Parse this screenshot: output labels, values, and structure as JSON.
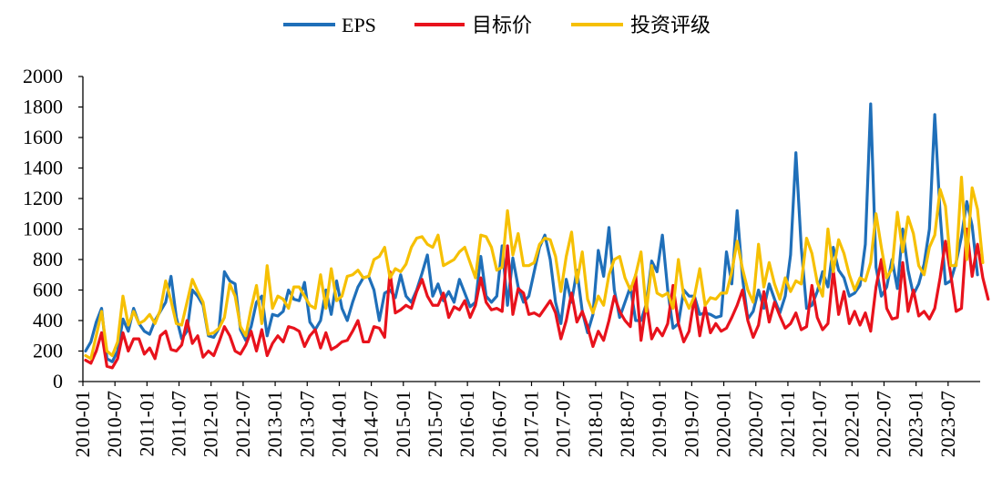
{
  "chart_data": {
    "type": "line",
    "title": "",
    "xlabel": "",
    "ylabel": "",
    "ylim": [
      0,
      2000
    ],
    "y_ticks": [
      "0",
      "200",
      "400",
      "600",
      "800",
      "1000",
      "1200",
      "1400",
      "1600",
      "1800",
      "2000"
    ],
    "x_tick_labels": [
      "2010-01",
      "2010-07",
      "2011-01",
      "2011-07",
      "2012-01",
      "2012-07",
      "2013-01",
      "2013-07",
      "2014-01",
      "2014-07",
      "2015-01",
      "2015-07",
      "2016-01",
      "2016-07",
      "2017-01",
      "2017-07",
      "2018-01",
      "2018-07",
      "2019-01",
      "2019-07",
      "2020-01",
      "2020-07",
      "2021-01",
      "2021-07",
      "2022-01",
      "2022-07",
      "2023-01",
      "2023-07"
    ],
    "start": "2010-01",
    "legend_position": "top-center",
    "series": [
      {
        "name": "EPS",
        "color": "#1f6fb9",
        "values": [
          200,
          260,
          390,
          480,
          150,
          130,
          200,
          410,
          330,
          480,
          380,
          330,
          310,
          400,
          460,
          520,
          690,
          420,
          280,
          330,
          600,
          560,
          500,
          300,
          290,
          350,
          720,
          660,
          640,
          340,
          270,
          360,
          520,
          560,
          300,
          440,
          430,
          460,
          600,
          540,
          530,
          650,
          390,
          340,
          400,
          600,
          440,
          660,
          480,
          400,
          520,
          620,
          680,
          690,
          600,
          400,
          580,
          600,
          550,
          700,
          560,
          520,
          600,
          710,
          830,
          560,
          640,
          530,
          590,
          520,
          670,
          580,
          490,
          520,
          820,
          560,
          520,
          560,
          890,
          500,
          810,
          620,
          520,
          560,
          720,
          880,
          960,
          800,
          520,
          380,
          670,
          520,
          730,
          460,
          320,
          440,
          860,
          690,
          1010,
          600,
          420,
          520,
          620,
          400,
          400,
          510,
          790,
          720,
          960,
          600,
          350,
          380,
          600,
          560,
          560,
          440,
          450,
          440,
          420,
          430,
          850,
          640,
          1120,
          680,
          410,
          460,
          600,
          480,
          640,
          540,
          450,
          560,
          830,
          1500,
          880,
          480,
          500,
          590,
          720,
          620,
          880,
          730,
          680,
          560,
          580,
          630,
          900,
          1820,
          750,
          560,
          620,
          800,
          610,
          1000,
          730,
          570,
          640,
          770,
          1000,
          1750,
          1100,
          640,
          660,
          780,
          950,
          1180,
          1020,
          700
        ]
      },
      {
        "name": "目标价",
        "color": "#e8121c",
        "values": [
          140,
          120,
          200,
          320,
          100,
          90,
          150,
          320,
          200,
          280,
          280,
          180,
          220,
          150,
          300,
          330,
          210,
          200,
          240,
          400,
          250,
          300,
          160,
          200,
          170,
          260,
          360,
          300,
          200,
          180,
          240,
          330,
          200,
          340,
          170,
          250,
          300,
          260,
          360,
          350,
          330,
          230,
          300,
          340,
          220,
          320,
          210,
          230,
          260,
          270,
          330,
          400,
          260,
          260,
          360,
          350,
          290,
          720,
          450,
          470,
          500,
          480,
          590,
          670,
          560,
          500,
          500,
          580,
          420,
          490,
          470,
          530,
          420,
          500,
          680,
          520,
          470,
          480,
          460,
          890,
          440,
          610,
          580,
          440,
          450,
          430,
          480,
          530,
          450,
          280,
          400,
          580,
          390,
          460,
          360,
          230,
          330,
          270,
          400,
          560,
          460,
          400,
          360,
          700,
          270,
          520,
          280,
          350,
          300,
          380,
          630,
          380,
          260,
          330,
          550,
          300,
          490,
          320,
          380,
          330,
          350,
          420,
          500,
          600,
          400,
          290,
          370,
          590,
          390,
          520,
          430,
          350,
          380,
          450,
          340,
          360,
          630,
          420,
          340,
          380,
          730,
          440,
          590,
          380,
          460,
          370,
          450,
          330,
          620,
          800,
          480,
          410,
          420,
          780,
          460,
          600,
          430,
          460,
          410,
          480,
          680,
          920,
          700,
          460,
          480,
          1000,
          690,
          900,
          680,
          540
        ]
      },
      {
        "name": "投资评级",
        "color": "#f6c003",
        "values": [
          170,
          150,
          300,
          460,
          200,
          170,
          260,
          560,
          370,
          460,
          380,
          400,
          440,
          380,
          470,
          660,
          530,
          380,
          370,
          520,
          670,
          590,
          520,
          310,
          320,
          350,
          420,
          640,
          560,
          360,
          300,
          480,
          630,
          380,
          760,
          480,
          560,
          540,
          480,
          620,
          620,
          560,
          500,
          480,
          700,
          480,
          740,
          530,
          560,
          690,
          700,
          730,
          680,
          690,
          800,
          820,
          880,
          680,
          740,
          720,
          770,
          880,
          940,
          950,
          900,
          880,
          960,
          760,
          780,
          800,
          850,
          880,
          780,
          680,
          960,
          950,
          880,
          730,
          750,
          1120,
          830,
          970,
          760,
          760,
          780,
          900,
          940,
          930,
          820,
          590,
          820,
          980,
          650,
          850,
          540,
          450,
          560,
          500,
          700,
          800,
          820,
          680,
          600,
          700,
          850,
          460,
          760,
          580,
          560,
          580,
          480,
          800,
          560,
          480,
          560,
          740,
          500,
          550,
          540,
          580,
          580,
          720,
          920,
          740,
          600,
          520,
          900,
          620,
          780,
          640,
          540,
          680,
          590,
          660,
          640,
          940,
          840,
          650,
          560,
          1000,
          720,
          930,
          840,
          700,
          600,
          680,
          660,
          780,
          1100,
          880,
          680,
          740,
          1110,
          850,
          1080,
          970,
          760,
          700,
          880,
          960,
          1260,
          1150,
          760,
          760,
          1340,
          800,
          1270,
          1130,
          780
        ]
      }
    ]
  }
}
